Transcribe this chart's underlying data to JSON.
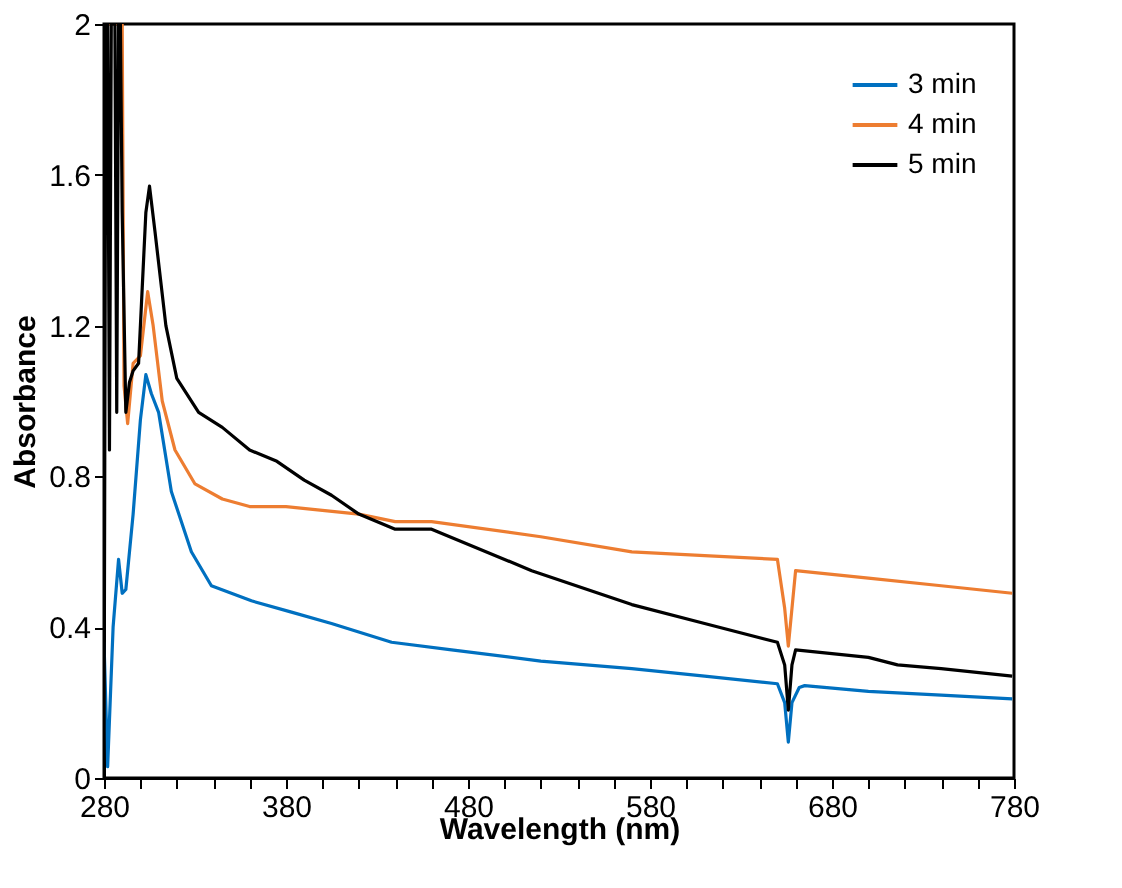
{
  "chart_data": {
    "type": "line",
    "xlabel": "Wavelength (nm)",
    "ylabel": "Absorbance",
    "xlim": [
      280,
      780
    ],
    "ylim": [
      0,
      2
    ],
    "xticks": [
      280,
      {
        "value": 300,
        "label": null
      },
      {
        "value": 320,
        "label": null
      },
      {
        "value": 340,
        "label": null
      },
      {
        "value": 360,
        "label": null
      },
      380,
      {
        "value": 400,
        "label": null
      },
      {
        "value": 420,
        "label": null
      },
      {
        "value": 440,
        "label": null
      },
      {
        "value": 460,
        "label": null
      },
      480,
      {
        "value": 500,
        "label": null
      },
      {
        "value": 520,
        "label": null
      },
      {
        "value": 540,
        "label": null
      },
      {
        "value": 560,
        "label": null
      },
      580,
      {
        "value": 600,
        "label": null
      },
      {
        "value": 620,
        "label": null
      },
      {
        "value": 640,
        "label": null
      },
      {
        "value": 660,
        "label": null
      },
      680,
      {
        "value": 700,
        "label": null
      },
      {
        "value": 720,
        "label": null
      },
      {
        "value": 740,
        "label": null
      },
      {
        "value": 760,
        "label": null
      },
      780
    ],
    "yticks": [
      0,
      0.4,
      0.8,
      1.2,
      1.6,
      2
    ],
    "grid": false,
    "legend": "top right",
    "line_style": "solid",
    "marker": "none",
    "series": [
      {
        "name": "3 min",
        "color": "#0070c0",
        "x": [
          280,
          282,
          285,
          288,
          290,
          292,
          296,
          300,
          303,
          306,
          310,
          317,
          328,
          339,
          361,
          383,
          405,
          438,
          471,
          520,
          570,
          610,
          650,
          654,
          656,
          658,
          662,
          665,
          700,
          740,
          779
        ],
        "values": [
          0.36,
          0.03,
          0.4,
          0.58,
          0.49,
          0.5,
          0.7,
          0.95,
          1.07,
          1.02,
          0.97,
          0.76,
          0.6,
          0.51,
          0.47,
          0.44,
          0.41,
          0.36,
          0.34,
          0.31,
          0.29,
          0.27,
          0.25,
          0.2,
          0.095,
          0.2,
          0.24,
          0.245,
          0.23,
          0.22,
          0.21
        ]
      },
      {
        "name": "4 min",
        "color": "#ed7d31",
        "x": [
          282,
          290,
          291,
          293,
          296,
          300,
          304,
          307,
          312,
          319,
          330,
          345,
          360,
          380,
          400,
          420,
          440,
          460,
          520,
          570,
          610,
          650,
          654,
          656,
          658,
          660,
          700,
          740,
          779
        ],
        "values": [
          2,
          2,
          1.04,
          0.94,
          1.1,
          1.12,
          1.29,
          1.2,
          1.0,
          0.87,
          0.78,
          0.74,
          0.72,
          0.72,
          0.71,
          0.7,
          0.68,
          0.68,
          0.64,
          0.6,
          0.59,
          0.58,
          0.45,
          0.35,
          0.45,
          0.55,
          0.53,
          0.51,
          0.49
        ]
      },
      {
        "name": "5 min",
        "color": "#000000",
        "x": [
          280,
          281,
          282,
          283,
          284,
          285,
          286,
          287,
          288,
          289,
          290,
          292,
          294,
          296,
          299,
          301,
          303,
          305,
          308,
          314,
          320,
          332,
          345,
          360,
          375,
          390,
          405,
          420,
          440,
          460,
          515,
          570,
          610,
          650,
          654,
          656,
          658,
          660,
          700,
          716,
          740,
          779
        ],
        "values": [
          0.0,
          2,
          2,
          0.87,
          2,
          2,
          2,
          0.97,
          2,
          2,
          1.5,
          0.97,
          1.05,
          1.08,
          1.1,
          1.3,
          1.5,
          1.57,
          1.45,
          1.2,
          1.06,
          0.97,
          0.93,
          0.87,
          0.84,
          0.79,
          0.75,
          0.7,
          0.66,
          0.66,
          0.55,
          0.46,
          0.41,
          0.36,
          0.3,
          0.18,
          0.3,
          0.34,
          0.32,
          0.3,
          0.29,
          0.27
        ]
      }
    ]
  }
}
